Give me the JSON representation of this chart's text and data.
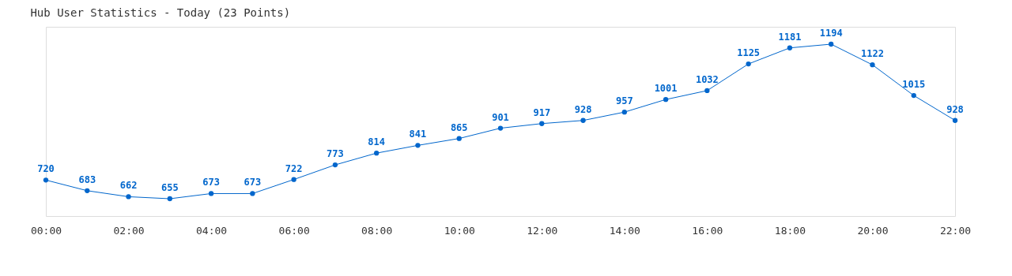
{
  "chart_data": {
    "type": "line",
    "title": "Hub User Statistics - Today (23 Points)",
    "x": [
      0,
      1,
      2,
      3,
      4,
      5,
      6,
      7,
      8,
      9,
      10,
      11,
      12,
      13,
      14,
      15,
      16,
      17,
      18,
      19,
      20,
      21,
      22
    ],
    "series": [
      {
        "color": "#0066cc",
        "values": [
          720,
          683,
          662,
          655,
          673,
          673,
          722,
          773,
          814,
          841,
          865,
          901,
          917,
          928,
          957,
          1001,
          1032,
          1125,
          1181,
          1194,
          1122,
          1015,
          928
        ]
      }
    ],
    "xlim": [
      0,
      22
    ],
    "xticks": [
      {
        "value": 0,
        "label": "00:00"
      },
      {
        "value": 2,
        "label": "02:00"
      },
      {
        "value": 4,
        "label": "04:00"
      },
      {
        "value": 6,
        "label": "06:00"
      },
      {
        "value": 8,
        "label": "08:00"
      },
      {
        "value": 10,
        "label": "10:00"
      },
      {
        "value": 12,
        "label": "12:00"
      },
      {
        "value": 14,
        "label": "14:00"
      },
      {
        "value": 16,
        "label": "16:00"
      },
      {
        "value": 18,
        "label": "18:00"
      },
      {
        "value": 20,
        "label": "20:00"
      },
      {
        "value": 22,
        "label": "22:00"
      }
    ],
    "tick_labels": "x",
    "data_labels": true,
    "marker": "circle",
    "line_style": "solid",
    "grid": false
  }
}
